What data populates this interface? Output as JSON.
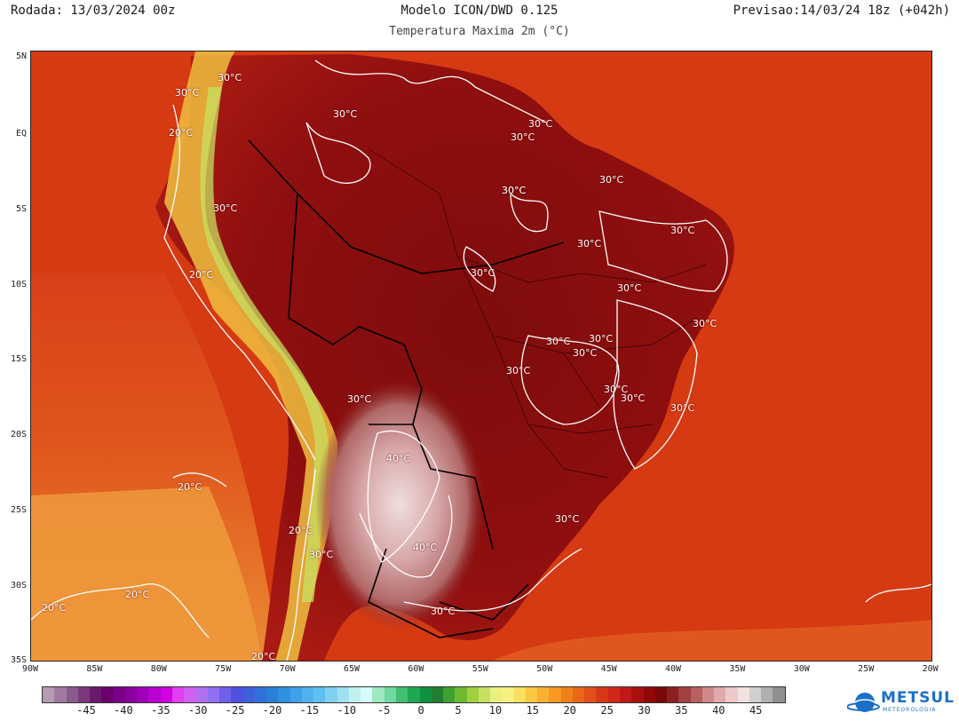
{
  "header": {
    "run": "Rodada: 13/03/2024 00z",
    "model": "Modelo ICON/DWD 0.125",
    "valid": "Previsao:14/03/24 18z (+042h)",
    "subtitle": "Temperatura Maxima 2m (°C)"
  },
  "axes": {
    "lat_labels": [
      "5N",
      "EQ",
      "5S",
      "10S",
      "15S",
      "20S",
      "25S",
      "30S",
      "35S"
    ],
    "lon_labels": [
      "90W",
      "85W",
      "80W",
      "75W",
      "70W",
      "65W",
      "60W",
      "55W",
      "50W",
      "45W",
      "40W",
      "35W",
      "30W",
      "25W",
      "20W"
    ]
  },
  "isotherm_labels": [
    {
      "text": "30°C"
    },
    {
      "text": "30°C"
    },
    {
      "text": "20°C"
    },
    {
      "text": "30°C"
    },
    {
      "text": "30°C"
    },
    {
      "text": "30°C"
    },
    {
      "text": "30°C"
    },
    {
      "text": "30°C"
    },
    {
      "text": "20°C"
    },
    {
      "text": "30°C"
    },
    {
      "text": "30°C"
    },
    {
      "text": "30°C"
    },
    {
      "text": "30°C"
    },
    {
      "text": "30°C"
    },
    {
      "text": "30°C"
    },
    {
      "text": "30°C"
    },
    {
      "text": "30°C"
    },
    {
      "text": "30°C"
    },
    {
      "text": "30°C"
    },
    {
      "text": "30°C"
    },
    {
      "text": "30°C"
    },
    {
      "text": "30°C"
    },
    {
      "text": "30°C"
    },
    {
      "text": "30°C"
    },
    {
      "text": "40°C"
    },
    {
      "text": "20°C"
    },
    {
      "text": "30°C"
    },
    {
      "text": "40°C"
    },
    {
      "text": "20°C"
    },
    {
      "text": "20°C"
    },
    {
      "text": "20°C"
    },
    {
      "text": "30°C"
    },
    {
      "text": "20°C"
    },
    {
      "text": "30°C"
    }
  ],
  "colorbar": {
    "labels": [
      "-45",
      "-40",
      "-35",
      "-30",
      "-25",
      "-20",
      "-15",
      "-10",
      "-5",
      "0",
      "5",
      "10",
      "15",
      "20",
      "25",
      "30",
      "35",
      "40",
      "45"
    ],
    "colors": [
      "#b59ab5",
      "#a07aa0",
      "#8a5a8a",
      "#7a3a7a",
      "#6a1a6a",
      "#6a006e",
      "#7a0088",
      "#8a00a0",
      "#a000b8",
      "#b800d0",
      "#d000e0",
      "#e040f0",
      "#d060f0",
      "#b070f0",
      "#9070f0",
      "#7060e8",
      "#5050e0",
      "#4060d8",
      "#3070d8",
      "#2a80d8",
      "#3090e0",
      "#40a0e8",
      "#50b0f0",
      "#60c0f0",
      "#80d0f0",
      "#a0e0f0",
      "#c0f0f0",
      "#d8fafa",
      "#a0e8c0",
      "#70d8a0",
      "#40c070",
      "#20a850",
      "#109040",
      "#208030",
      "#40a030",
      "#70b830",
      "#a0d040",
      "#c8e060",
      "#e8f080",
      "#f8f080",
      "#f8e060",
      "#f8c840",
      "#f8b030",
      "#f89820",
      "#f08018",
      "#e86818",
      "#e05018",
      "#d83818",
      "#d02818",
      "#c01818",
      "#a81010",
      "#900808",
      "#7a0808",
      "#8a2020",
      "#a04040",
      "#b86060",
      "#d08888",
      "#e0aaaa",
      "#eccaca",
      "#f4e0e0",
      "#d0d0d0",
      "#b0b0b0",
      "#909090"
    ]
  },
  "logo": {
    "name": "METSUL",
    "sub": "METEOROLOGIA"
  }
}
